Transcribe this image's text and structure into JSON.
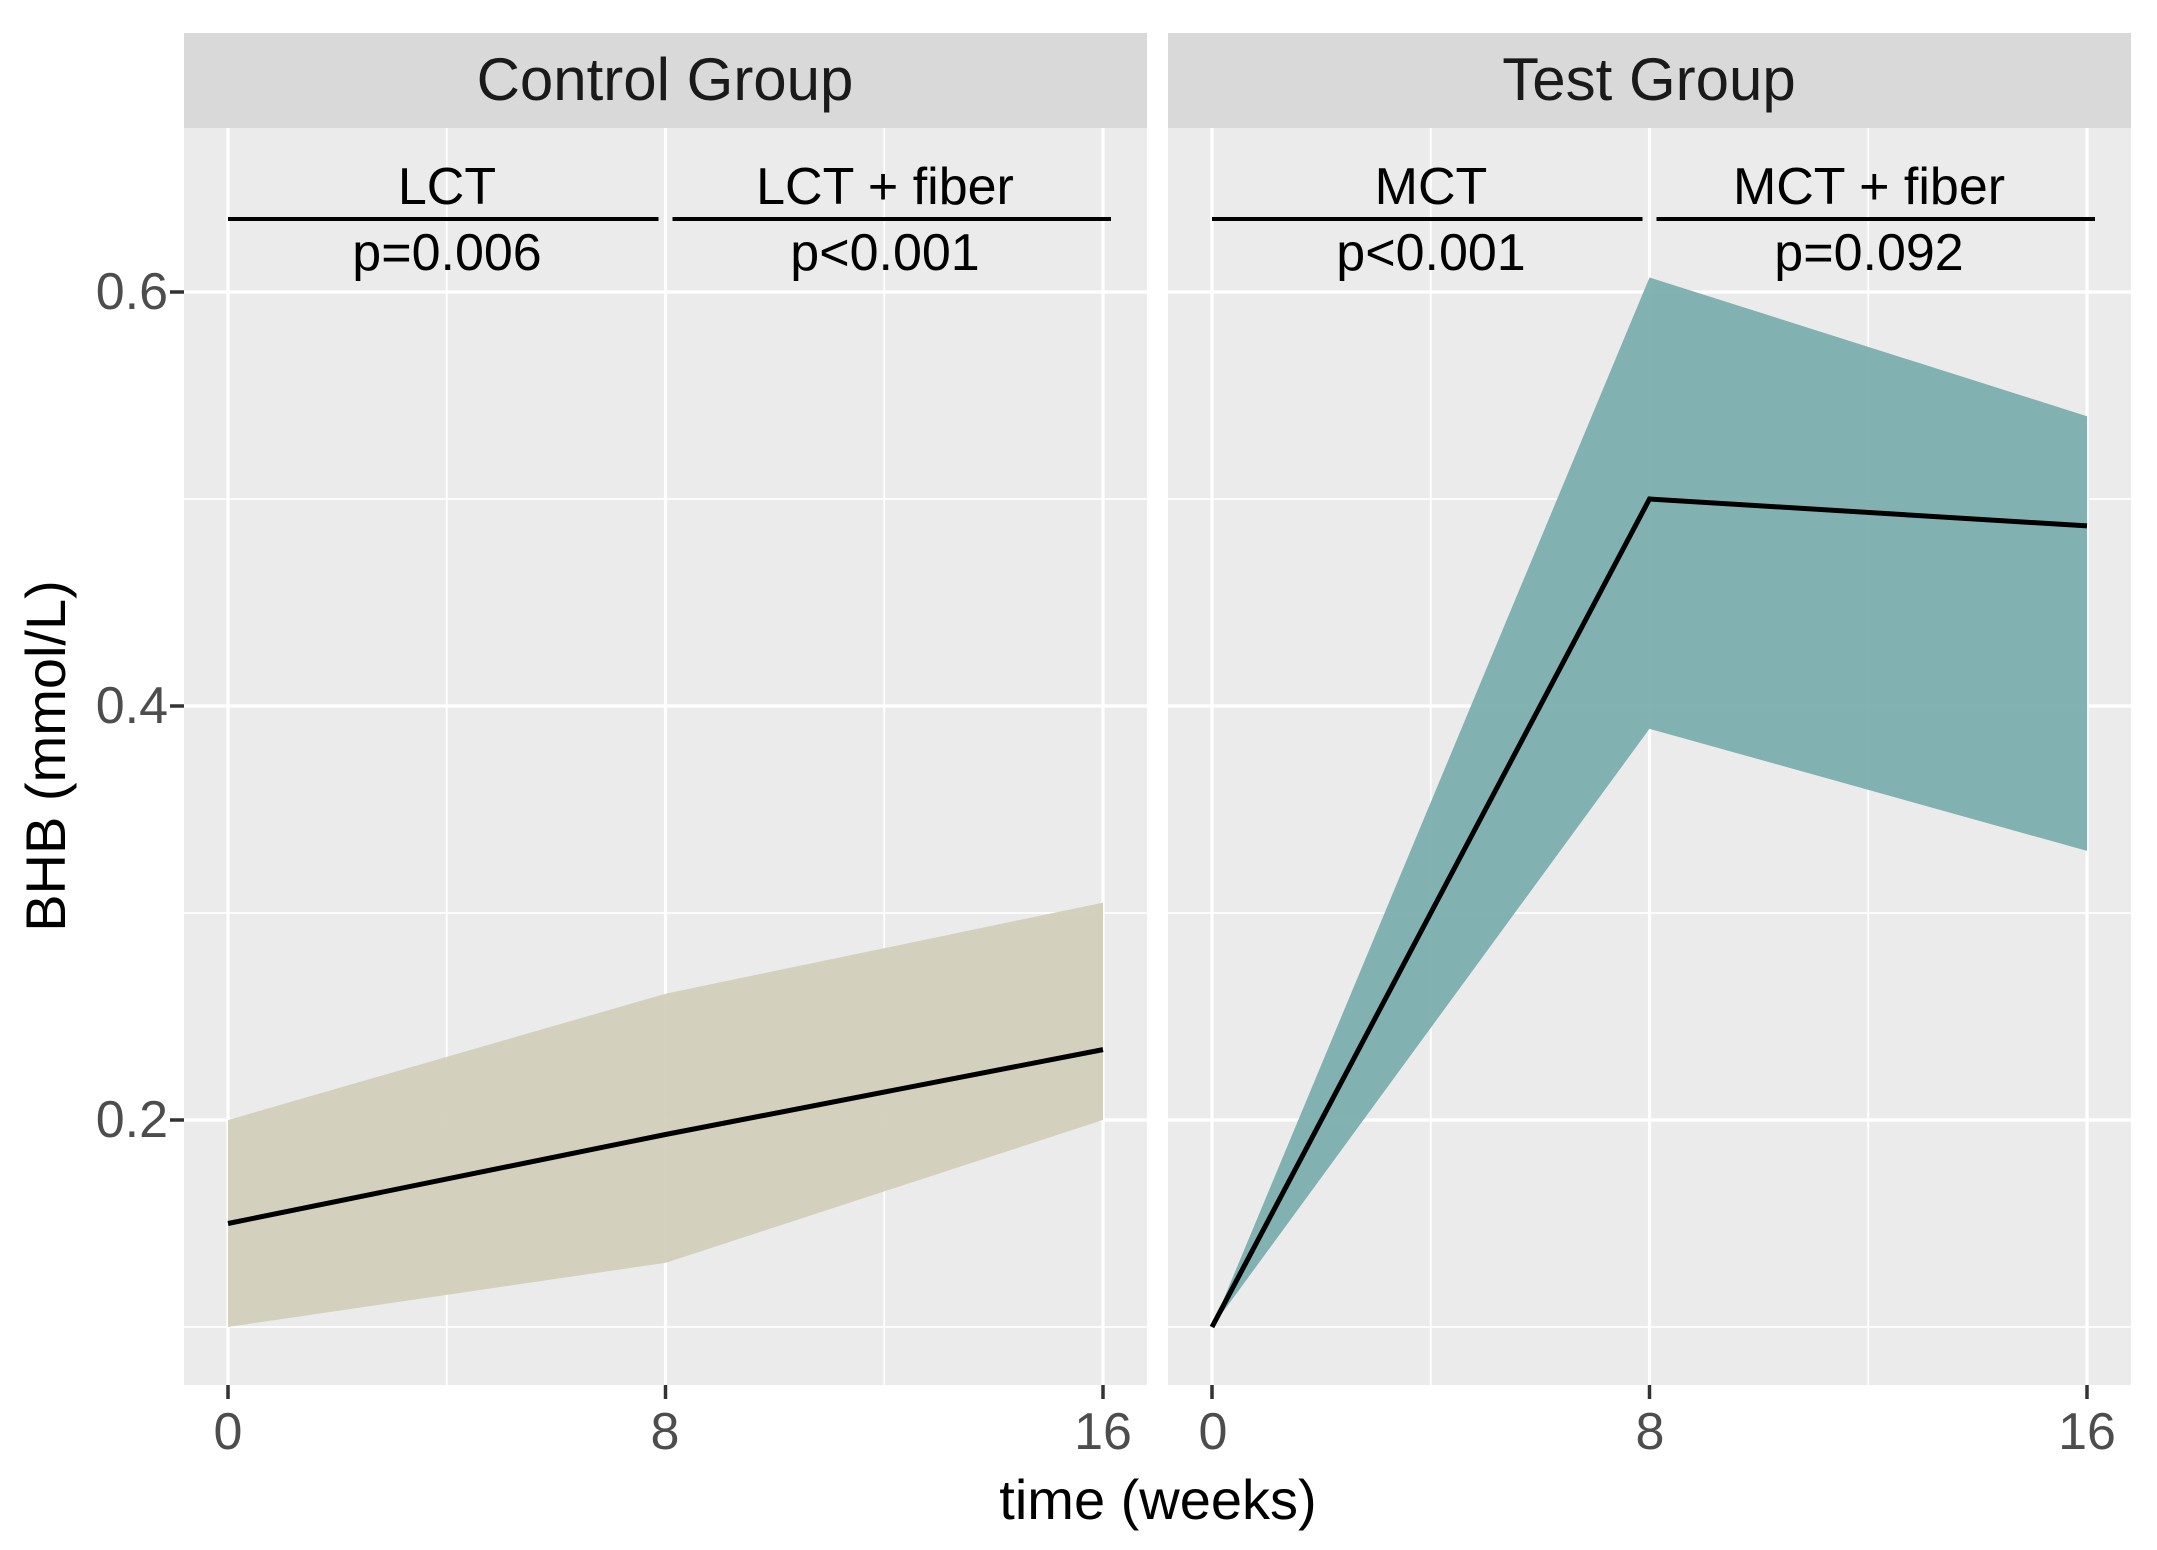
{
  "chart_data": {
    "type": "line",
    "xlabel": "time (weeks)",
    "ylabel": "BHB (mmol/L)",
    "x": [
      0,
      8,
      16
    ],
    "xticks": [
      0,
      8,
      16
    ],
    "xticks_minor": [
      4,
      12
    ],
    "xtick_labels": [
      "0",
      "8",
      "16"
    ],
    "yticks": [
      0.2,
      0.4,
      0.6
    ],
    "yticks_minor": [
      0.1,
      0.3,
      0.5
    ],
    "ytick_labels": [
      "0.2",
      "0.4",
      "0.6"
    ],
    "xlim": [
      -0.8,
      16.8
    ],
    "ylim": [
      0.072,
      0.679
    ],
    "grid": true,
    "legend": "none",
    "panels": [
      {
        "title": "Control Group",
        "series": [
          {
            "name": "mean BHB",
            "values": [
              0.15,
              0.193,
              0.234
            ]
          }
        ],
        "ribbon": {
          "name": "confidence band",
          "lower": [
            0.1,
            0.131,
            0.2
          ],
          "upper": [
            0.2,
            0.261,
            0.305
          ],
          "fill": "#D2CEBA"
        },
        "annotations": [
          {
            "label": "LCT",
            "p_value": "p=0.006",
            "x_span": [
              0,
              8
            ]
          },
          {
            "label": "LCT + fiber",
            "p_value": "p<0.001",
            "x_span": [
              8,
              16
            ]
          }
        ]
      },
      {
        "title": "Test Group",
        "series": [
          {
            "name": "mean BHB",
            "values": [
              0.1,
              0.5,
              0.487
            ]
          }
        ],
        "ribbon": {
          "name": "confidence band",
          "lower": [
            0.1,
            0.389,
            0.33
          ],
          "upper": [
            0.1,
            0.607,
            0.54
          ],
          "fill": "#7AACAC"
        },
        "annotations": [
          {
            "label": "MCT",
            "p_value": "p<0.001",
            "x_span": [
              0,
              8
            ]
          },
          {
            "label": "MCT + fiber",
            "p_value": "p=0.092",
            "x_span": [
              8,
              16
            ]
          }
        ]
      }
    ],
    "style": {
      "panel_bg": "#EBEBEB",
      "strip_bg": "#D9D9D9",
      "grid_color": "#FFFFFF",
      "line_color": "#000000",
      "tick_color": "#333333",
      "tick_label_color": "#4D4D4D",
      "strip_text_color": "#1A1A1A",
      "axis_title_color": "#000000"
    }
  }
}
